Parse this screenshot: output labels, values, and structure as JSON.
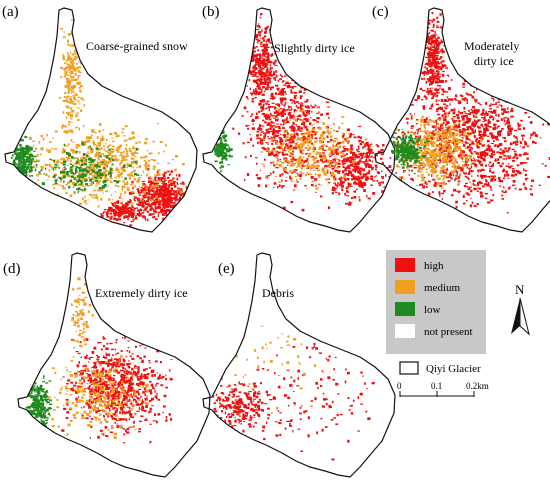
{
  "figure": {
    "panels": [
      {
        "id": "a",
        "letter": "(a)",
        "label": "Coarse-grained snow"
      },
      {
        "id": "b",
        "letter": "(b)",
        "label": "Slightly dirty ice"
      },
      {
        "id": "c",
        "letter": "(c)",
        "label": "Moderately\ndirty ice"
      },
      {
        "id": "d",
        "letter": "(d)",
        "label": "Extremely dirty ice"
      },
      {
        "id": "e",
        "letter": "(e)",
        "label": "Debris"
      }
    ],
    "legend": {
      "items": [
        {
          "label": "high",
          "color": "#ee1111"
        },
        {
          "label": "medium",
          "color": "#f0a020"
        },
        {
          "label": "low",
          "color": "#1f8a1f"
        },
        {
          "label": "not present",
          "color": "#ffffff"
        }
      ],
      "outline_label": "Qiyi Glacier"
    },
    "scale": {
      "ticks": [
        "0",
        "0.1",
        "0.2km"
      ]
    },
    "north": "N"
  },
  "colors": {
    "high": "#ee1111",
    "medium": "#f0a020",
    "low": "#1f8a1f",
    "legend_bg": "#c8c8c8",
    "outline": "#111111"
  }
}
